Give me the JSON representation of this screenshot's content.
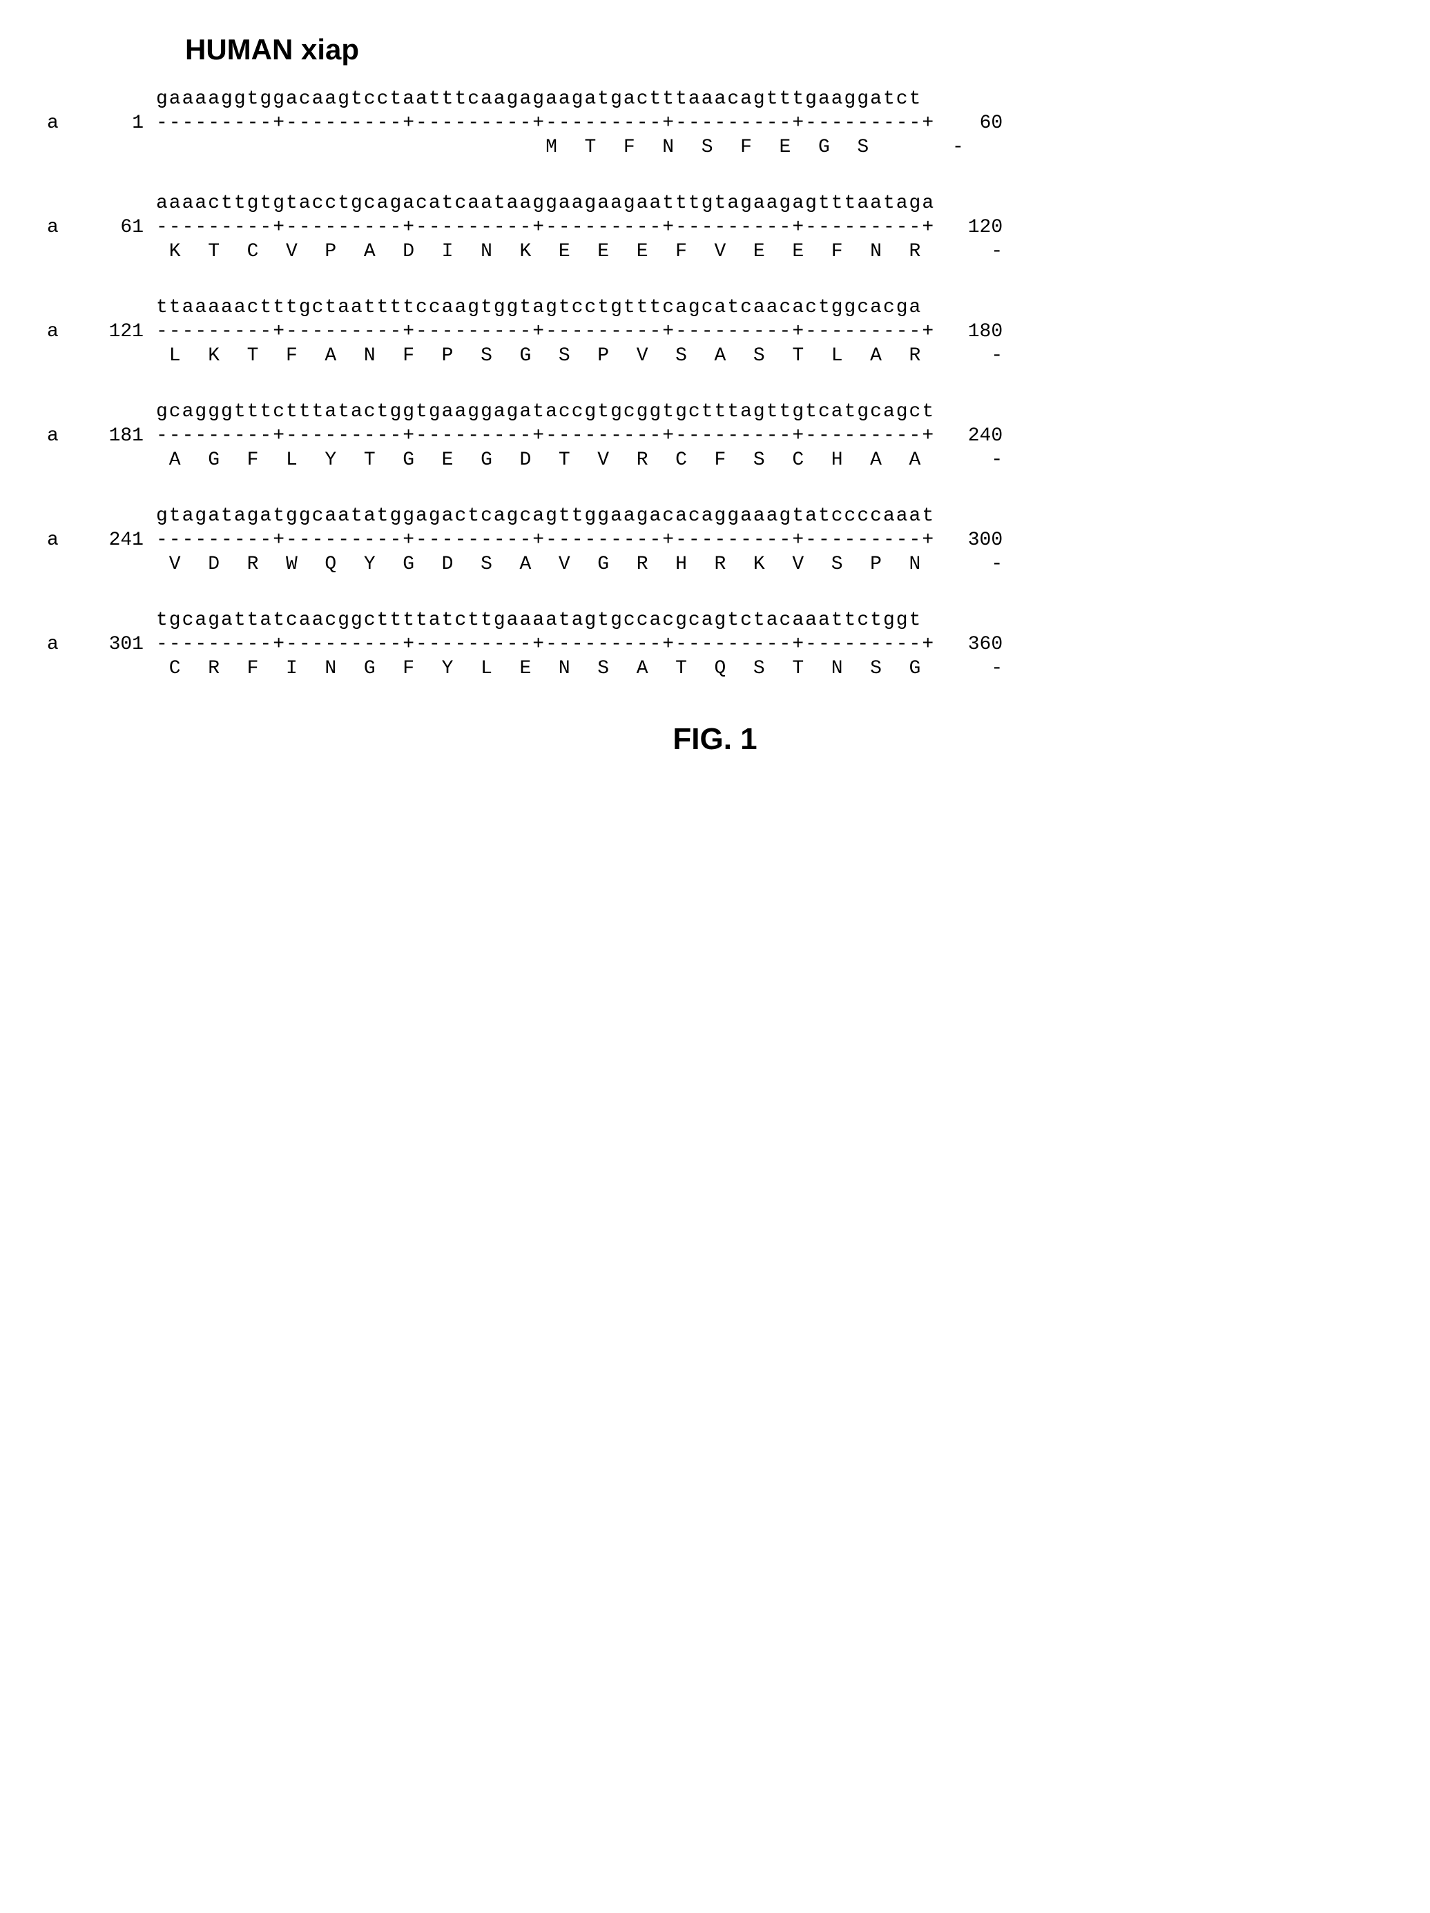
{
  "title": "HUMAN xiap",
  "figure_label": "FIG. 1",
  "ruler": "---------+---------+---------+---------+---------+---------+",
  "strand_label": "a",
  "aa_end_marker": "-",
  "blocks": [
    {
      "start": "1",
      "end": "60",
      "seq": "gaaaaggtggacaagtcctaatttcaagagaagatgactttaaacagtttgaaggatct",
      "aa": "                              M  T  F  N  S  F  E  G  S  "
    },
    {
      "start": "61",
      "end": "120",
      "seq": "aaaacttgtgtacctgcagacatcaataaggaagaagaatttgtagaagagtttaataga",
      "aa": " K  T  C  V  P  A  D  I  N  K  E  E  E  F  V  E  E  F  N  R "
    },
    {
      "start": "121",
      "end": "180",
      "seq": "ttaaaaactttgctaattttccaagtggtagtcctgtttcagcatcaacactggcacga",
      "aa": " L  K  T  F  A  N  F  P  S  G  S  P  V  S  A  S  T  L  A  R "
    },
    {
      "start": "181",
      "end": "240",
      "seq": "gcagggtttctttatactggtgaaggagataccgtgcggtgctttagttgtcatgcagct",
      "aa": " A  G  F  L  Y  T  G  E  G  D  T  V  R  C  F  S  C  H  A  A "
    },
    {
      "start": "241",
      "end": "300",
      "seq": "gtagatagatggcaatatggagactcagcagttggaagacacaggaaagtatccccaaat",
      "aa": " V  D  R  W  Q  Y  G  D  S  A  V  G  R  H  R  K  V  S  P  N "
    },
    {
      "start": "301",
      "end": "360",
      "seq": "tgcagattatcaacggcttttatcttgaaaatagtgccacgcagtctacaaattctggt",
      "aa": " C  R  F  I  N  G  F  Y  L  E  N  S  A  T  Q  S  T  N  S  G "
    }
  ]
}
